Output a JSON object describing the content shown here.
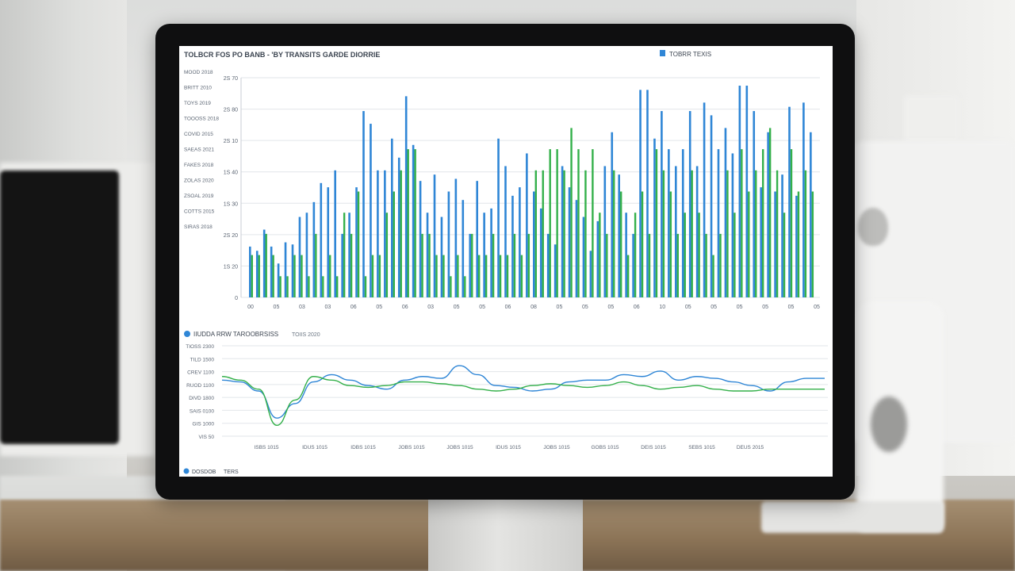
{
  "top_panel": {
    "title": "TOLBCR FOS PO BANB - 'BY TRANSITS GARDE DIORRIE",
    "legend_label": "TOBRR TEXIS",
    "y_ticks": [
      "2S 70",
      "2S 80",
      "2S 10",
      "1S 40",
      "1S 30",
      "2S 20",
      "1S 20",
      "0"
    ],
    "left_labels": [
      "MOOD 2018",
      "BRITT 2010",
      "TOYS 2019",
      "TOOOSS 2018",
      "COVID 2015",
      "SAEAS 2021",
      "FAKES 2018",
      "ZOLAS 2020",
      "ZSOAL 2019",
      "COTTS 2015",
      "SIRAS 2018"
    ],
    "x_ticks": [
      "00",
      "05",
      "03",
      "03",
      "06",
      "05",
      "06",
      "03",
      "05",
      "05",
      "06",
      "08",
      "05",
      "05",
      "05",
      "06",
      "10",
      "05",
      "05",
      "05",
      "05",
      "05",
      "05"
    ]
  },
  "bottom_panel": {
    "legend_label": "IIUDDA RRW TAROOBRSISS",
    "sublabel": "TOIIS 2020",
    "y_ticks": [
      "TIOSS 2300",
      "TILD 1500",
      "CREV 1100",
      "RUOD 1100",
      "DIVD 1800",
      "SAIS 0100",
      "GIS 1000",
      "VIS 50"
    ],
    "x_ticks": [
      "ISBS 1015",
      "IDUS 1015",
      "IDBS 1015",
      "JOBS 1015",
      "JOBS 1015",
      "IDUS 1015",
      "JOBS 1015",
      "GOBS 1015",
      "DEIS 1015",
      "SEBS 1015",
      "DEUS 2015"
    ],
    "footer_legend": "DOSDOB",
    "footer_legend_2": "TERS"
  },
  "colors": {
    "blue": "#2f86d6",
    "green": "#34b04a",
    "grid": "#e2e6ea",
    "text": "#5b6573"
  },
  "chart_data": [
    {
      "type": "bar",
      "series": [
        {
          "name": "",
          "values": [
            0.2,
            0.2,
            0.3,
            0.2,
            0.1,
            0.1,
            0.2,
            0.2,
            0.1,
            0.3,
            0.1,
            0.2,
            0.1,
            0.4,
            0.3,
            0.5,
            0.1,
            0.2,
            0.2,
            0.4,
            0.5,
            0.6,
            0.7,
            0.7,
            0.3,
            0.3,
            0.2,
            0.2,
            0.1,
            0.2,
            0.1,
            0.3,
            0.2,
            0.2,
            0.3,
            0.2,
            0.2,
            0.3,
            0.2,
            0.3,
            0.6,
            0.6,
            0.7,
            0.7,
            0.6,
            0.8,
            0.7,
            0.6,
            0.7,
            0.4,
            0.3,
            0.6,
            0.5,
            0.2,
            0.4,
            0.5,
            0.3,
            0.7,
            0.6,
            0.5,
            0.3,
            0.4,
            0.6,
            0.4,
            0.3,
            0.2,
            0.3,
            0.6,
            0.4,
            0.7,
            0.5,
            0.6,
            0.7,
            0.8,
            0.6,
            0.4,
            0.7,
            0.5,
            0.6,
            0.5
          ]
        },
        {
          "name": "",
          "values": [
            0.24,
            0.22,
            0.32,
            0.24,
            0.16,
            0.26,
            0.25,
            0.38,
            0.4,
            0.45,
            0.54,
            0.52,
            0.6,
            0.3,
            0.4,
            0.52,
            0.88,
            0.82,
            0.6,
            0.6,
            0.75,
            0.66,
            0.95,
            0.72,
            0.55,
            0.4,
            0.58,
            0.38,
            0.5,
            0.56,
            0.46,
            0.3,
            0.55,
            0.4,
            0.42,
            0.75,
            0.62,
            0.48,
            0.52,
            0.68,
            0.5,
            0.42,
            0.3,
            0.25,
            0.62,
            0.52,
            0.46,
            0.38,
            0.22,
            0.36,
            0.62,
            0.78,
            0.58,
            0.4,
            0.3,
            0.98,
            0.98,
            0.75,
            0.88,
            0.7,
            0.62,
            0.7,
            0.88,
            0.62,
            0.92,
            0.86,
            0.7,
            0.8,
            0.68,
            1.0,
            1.0,
            0.88,
            0.52,
            0.78,
            0.5,
            0.58,
            0.9,
            0.48,
            0.92,
            0.78
          ]
        }
      ]
    },
    {
      "type": "line",
      "series": [
        {
          "name": "",
          "values": [
            0.62,
            0.6,
            0.5,
            0.2,
            0.36,
            0.6,
            0.68,
            0.62,
            0.56,
            0.52,
            0.62,
            0.66,
            0.64,
            0.78,
            0.68,
            0.56,
            0.54,
            0.5,
            0.52,
            0.6,
            0.62,
            0.62,
            0.68,
            0.66,
            0.72,
            0.62,
            0.66,
            0.64,
            0.6,
            0.56,
            0.5,
            0.6,
            0.64,
            0.64
          ]
        },
        {
          "name": "",
          "values": [
            0.66,
            0.62,
            0.52,
            0.12,
            0.4,
            0.66,
            0.62,
            0.56,
            0.54,
            0.56,
            0.6,
            0.6,
            0.58,
            0.56,
            0.52,
            0.5,
            0.52,
            0.56,
            0.58,
            0.56,
            0.54,
            0.56,
            0.6,
            0.56,
            0.52,
            0.54,
            0.56,
            0.52,
            0.5,
            0.5,
            0.52,
            0.52,
            0.52,
            0.52
          ]
        }
      ]
    }
  ]
}
